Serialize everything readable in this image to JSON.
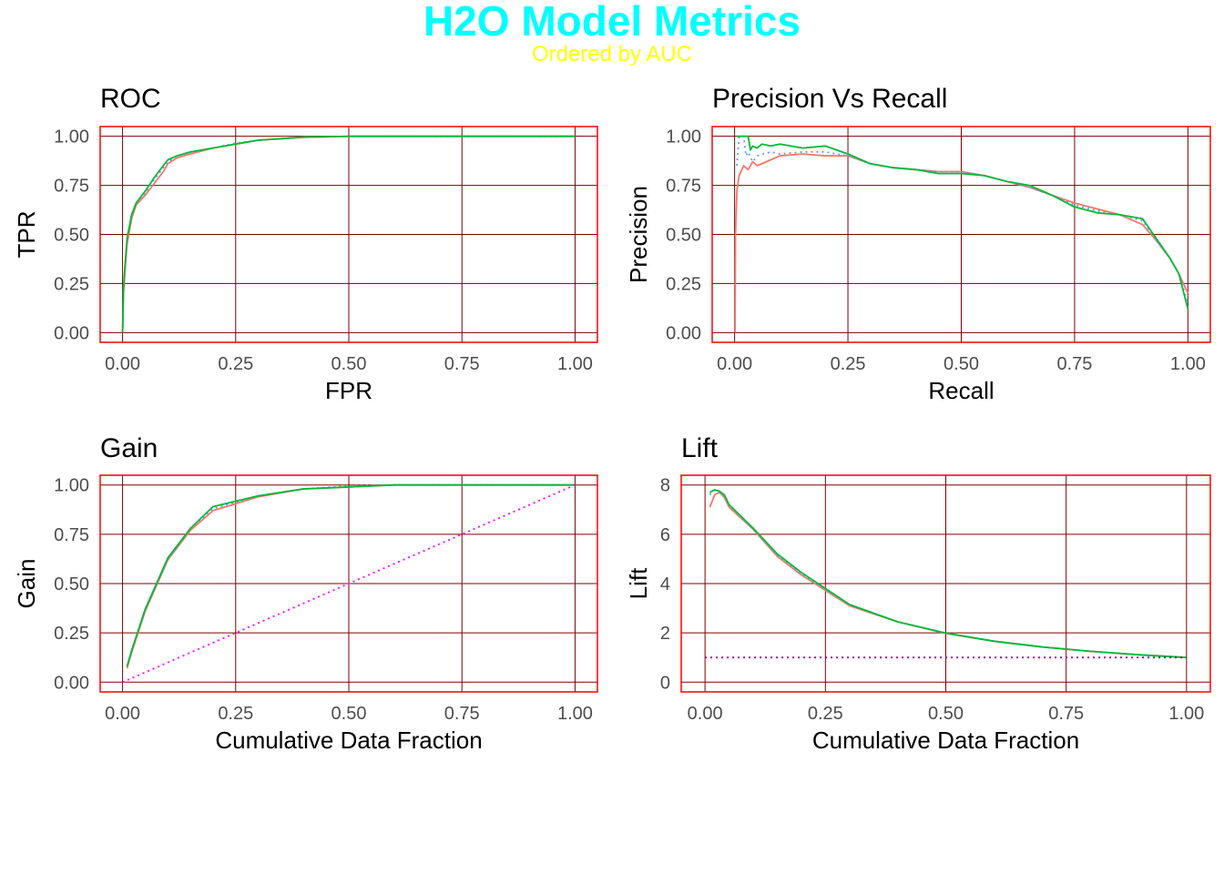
{
  "title": "H2O Model Metrics",
  "subtitle": "Ordered by AUC",
  "colors": {
    "title": "#00FFFF",
    "subtitle": "#FFFF00",
    "panel_border": "#FF0000",
    "grid": "#7F0000",
    "model_1": "#F8766D",
    "model_2": "#619CFF",
    "model_3": "#00BA38",
    "baseline_gain": "#FF00FF",
    "baseline_lift": "#8B008B"
  },
  "chart_data": [
    {
      "id": "roc",
      "type": "line",
      "title": "ROC",
      "xlabel": "FPR",
      "ylabel": "TPR",
      "xlim": [
        0,
        1
      ],
      "ylim": [
        0,
        1
      ],
      "xticks": [
        "0.00",
        "0.25",
        "0.50",
        "0.75",
        "1.00"
      ],
      "yticks": [
        "0.00",
        "0.25",
        "0.50",
        "0.75",
        "1.00"
      ],
      "series": [
        {
          "color": "#F8766D",
          "dash": "solid",
          "x": [
            0,
            0.002,
            0.005,
            0.01,
            0.02,
            0.03,
            0.05,
            0.07,
            0.09,
            0.1,
            0.12,
            0.15,
            0.2,
            0.25,
            0.3,
            0.4,
            0.5,
            1.0
          ],
          "y": [
            0,
            0.2,
            0.3,
            0.45,
            0.58,
            0.65,
            0.7,
            0.76,
            0.82,
            0.86,
            0.89,
            0.91,
            0.94,
            0.96,
            0.98,
            0.995,
            1.0,
            1.0
          ]
        },
        {
          "color": "#619CFF",
          "dash": "dotted",
          "x": [
            0,
            0.002,
            0.005,
            0.01,
            0.02,
            0.03,
            0.05,
            0.07,
            0.09,
            0.1,
            0.12,
            0.15,
            0.2,
            0.25,
            0.3,
            0.4,
            0.5,
            1.0
          ],
          "y": [
            0,
            0.22,
            0.32,
            0.47,
            0.6,
            0.66,
            0.71,
            0.78,
            0.84,
            0.87,
            0.9,
            0.92,
            0.94,
            0.965,
            0.98,
            0.995,
            1.0,
            1.0
          ]
        },
        {
          "color": "#00BA38",
          "dash": "solid",
          "x": [
            0,
            0.002,
            0.005,
            0.01,
            0.02,
            0.03,
            0.05,
            0.07,
            0.09,
            0.1,
            0.12,
            0.15,
            0.2,
            0.25,
            0.3,
            0.4,
            0.5,
            1.0
          ],
          "y": [
            0,
            0.23,
            0.33,
            0.48,
            0.6,
            0.66,
            0.72,
            0.79,
            0.85,
            0.88,
            0.9,
            0.92,
            0.94,
            0.96,
            0.98,
            0.995,
            1.0,
            1.0
          ]
        }
      ]
    },
    {
      "id": "pr",
      "type": "line",
      "title": "Precision Vs Recall",
      "xlabel": "Recall",
      "ylabel": "Precision",
      "xlim": [
        0,
        1
      ],
      "ylim": [
        0,
        1
      ],
      "xticks": [
        "0.00",
        "0.25",
        "0.50",
        "0.75",
        "1.00"
      ],
      "yticks": [
        "0.00",
        "0.25",
        "0.50",
        "0.75",
        "1.00"
      ],
      "series": [
        {
          "color": "#F8766D",
          "dash": "solid",
          "x": [
            0.001,
            0.002,
            0.005,
            0.01,
            0.02,
            0.03,
            0.04,
            0.05,
            0.08,
            0.1,
            0.15,
            0.2,
            0.25,
            0.3,
            0.35,
            0.4,
            0.45,
            0.5,
            0.55,
            0.6,
            0.65,
            0.7,
            0.75,
            0.8,
            0.85,
            0.9,
            0.93,
            0.96,
            0.98,
            1.0
          ],
          "y": [
            0,
            0.5,
            0.72,
            0.8,
            0.85,
            0.83,
            0.87,
            0.85,
            0.88,
            0.9,
            0.91,
            0.9,
            0.9,
            0.86,
            0.84,
            0.83,
            0.82,
            0.82,
            0.8,
            0.77,
            0.74,
            0.7,
            0.66,
            0.63,
            0.6,
            0.55,
            0.47,
            0.38,
            0.3,
            0.2
          ]
        },
        {
          "color": "#619CFF",
          "dash": "dotted",
          "x": [
            0.005,
            0.01,
            0.02,
            0.025,
            0.03,
            0.04,
            0.05,
            0.08,
            0.1,
            0.15,
            0.2,
            0.25,
            0.3,
            0.35,
            0.4,
            0.45,
            0.5,
            0.55,
            0.6,
            0.65,
            0.7,
            0.75,
            0.8,
            0.85,
            0.9,
            0.93,
            0.96,
            0.98,
            1.0
          ],
          "y": [
            0.85,
            1.0,
            1.0,
            0.9,
            0.92,
            0.87,
            0.9,
            0.92,
            0.91,
            0.92,
            0.92,
            0.9,
            0.86,
            0.84,
            0.83,
            0.82,
            0.82,
            0.8,
            0.77,
            0.74,
            0.7,
            0.65,
            0.62,
            0.6,
            0.57,
            0.47,
            0.38,
            0.3,
            0.15
          ]
        },
        {
          "color": "#00BA38",
          "dash": "solid",
          "x": [
            0.005,
            0.03,
            0.035,
            0.04,
            0.05,
            0.06,
            0.08,
            0.1,
            0.15,
            0.2,
            0.25,
            0.3,
            0.35,
            0.4,
            0.45,
            0.5,
            0.55,
            0.6,
            0.65,
            0.7,
            0.75,
            0.8,
            0.85,
            0.9,
            0.93,
            0.96,
            0.98,
            1.0
          ],
          "y": [
            1.0,
            1.0,
            0.93,
            0.95,
            0.94,
            0.96,
            0.95,
            0.96,
            0.94,
            0.95,
            0.91,
            0.86,
            0.84,
            0.83,
            0.81,
            0.81,
            0.8,
            0.77,
            0.75,
            0.7,
            0.64,
            0.61,
            0.6,
            0.58,
            0.48,
            0.38,
            0.3,
            0.12
          ]
        }
      ]
    },
    {
      "id": "gain",
      "type": "line",
      "title": "Gain",
      "xlabel": "Cumulative Data Fraction",
      "ylabel": "Gain",
      "xlim": [
        0,
        1
      ],
      "ylim": [
        0,
        1
      ],
      "xticks": [
        "0.00",
        "0.25",
        "0.50",
        "0.75",
        "1.00"
      ],
      "yticks": [
        "0.00",
        "0.25",
        "0.50",
        "0.75",
        "1.00"
      ],
      "series": [
        {
          "color": "#F8766D",
          "dash": "solid",
          "x": [
            0.01,
            0.02,
            0.03,
            0.05,
            0.1,
            0.15,
            0.2,
            0.3,
            0.4,
            0.5,
            0.6,
            0.7,
            0.8,
            0.9,
            1.0
          ],
          "y": [
            0.07,
            0.15,
            0.22,
            0.36,
            0.62,
            0.77,
            0.87,
            0.94,
            0.98,
            0.99,
            1.0,
            1.0,
            1.0,
            1.0,
            1.0
          ]
        },
        {
          "color": "#619CFF",
          "dash": "dotted",
          "x": [
            0.01,
            0.02,
            0.03,
            0.05,
            0.1,
            0.15,
            0.2,
            0.3,
            0.4,
            0.5,
            0.6,
            0.7,
            0.8,
            0.9,
            1.0
          ],
          "y": [
            0.08,
            0.16,
            0.23,
            0.37,
            0.62,
            0.78,
            0.88,
            0.945,
            0.98,
            0.995,
            1.0,
            1.0,
            1.0,
            1.0,
            1.0
          ]
        },
        {
          "color": "#00BA38",
          "dash": "solid",
          "x": [
            0.01,
            0.02,
            0.03,
            0.05,
            0.1,
            0.15,
            0.2,
            0.3,
            0.4,
            0.5,
            0.6,
            0.7,
            0.8,
            0.9,
            1.0
          ],
          "y": [
            0.08,
            0.16,
            0.23,
            0.37,
            0.63,
            0.78,
            0.89,
            0.945,
            0.98,
            0.99,
            1.0,
            1.0,
            1.0,
            1.0,
            1.0
          ]
        },
        {
          "color": "#FF00FF",
          "dash": "dotted",
          "x": [
            0,
            1
          ],
          "y": [
            0,
            1
          ]
        }
      ]
    },
    {
      "id": "lift",
      "type": "line",
      "title": "Lift",
      "xlabel": "Cumulative Data Fraction",
      "ylabel": "Lift",
      "xlim": [
        0,
        1
      ],
      "ylim": [
        0,
        8
      ],
      "xticks": [
        "0.00",
        "0.25",
        "0.50",
        "0.75",
        "1.00"
      ],
      "yticks": [
        "0",
        "2",
        "4",
        "6",
        "8"
      ],
      "series": [
        {
          "color": "#F8766D",
          "dash": "solid",
          "x": [
            0.01,
            0.02,
            0.03,
            0.04,
            0.05,
            0.1,
            0.15,
            0.2,
            0.3,
            0.4,
            0.5,
            0.6,
            0.7,
            0.8,
            0.9,
            1.0
          ],
          "y": [
            7.1,
            7.6,
            7.7,
            7.5,
            7.1,
            6.2,
            5.1,
            4.35,
            3.1,
            2.45,
            1.98,
            1.66,
            1.43,
            1.25,
            1.11,
            1.0
          ]
        },
        {
          "color": "#619CFF",
          "dash": "dotted",
          "x": [
            0.01,
            0.02,
            0.03,
            0.04,
            0.05,
            0.1,
            0.15,
            0.2,
            0.3,
            0.4,
            0.5,
            0.6,
            0.7,
            0.8,
            0.9,
            1.0
          ],
          "y": [
            7.6,
            7.8,
            7.7,
            7.6,
            7.2,
            6.2,
            5.15,
            4.4,
            3.15,
            2.45,
            1.99,
            1.66,
            1.43,
            1.25,
            1.11,
            1.0
          ]
        },
        {
          "color": "#00BA38",
          "dash": "solid",
          "x": [
            0.01,
            0.02,
            0.03,
            0.04,
            0.05,
            0.1,
            0.15,
            0.2,
            0.3,
            0.4,
            0.5,
            0.6,
            0.7,
            0.8,
            0.9,
            1.0
          ],
          "y": [
            7.7,
            7.8,
            7.75,
            7.6,
            7.2,
            6.25,
            5.2,
            4.45,
            3.15,
            2.45,
            1.99,
            1.66,
            1.43,
            1.25,
            1.11,
            1.0
          ]
        },
        {
          "color": "#8B008B",
          "dash": "dotted",
          "x": [
            0,
            1
          ],
          "y": [
            1,
            1
          ]
        }
      ]
    }
  ]
}
